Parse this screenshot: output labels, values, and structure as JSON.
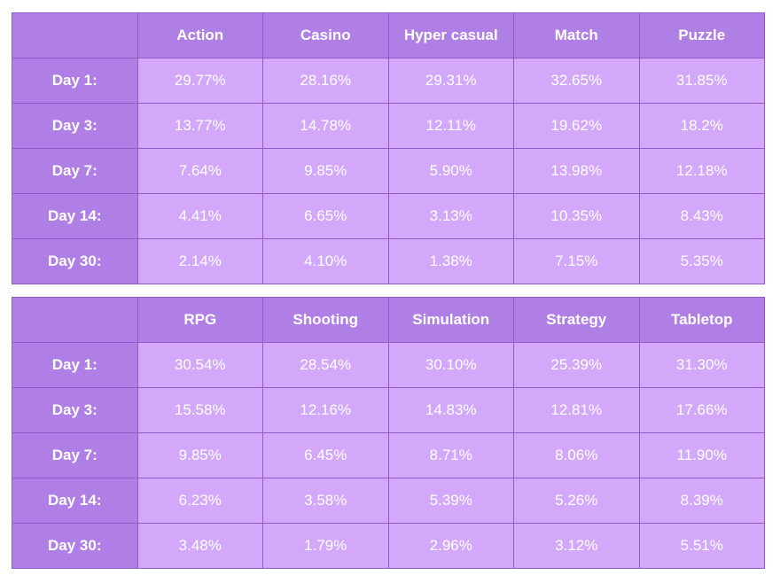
{
  "chart_data": [
    {
      "type": "table",
      "columns": [
        "Action",
        "Casino",
        "Hyper casual",
        "Match",
        "Puzzle"
      ],
      "rows": [
        {
          "label": "Day 1:",
          "values": [
            "29.77%",
            "28.16%",
            "29.31%",
            "32.65%",
            "31.85%"
          ]
        },
        {
          "label": "Day 3:",
          "values": [
            "13.77%",
            "14.78%",
            "12.11%",
            "19.62%",
            "18.2%"
          ]
        },
        {
          "label": "Day 7:",
          "values": [
            "7.64%",
            "9.85%",
            "5.90%",
            "13.98%",
            "12.18%"
          ]
        },
        {
          "label": "Day 14:",
          "values": [
            "4.41%",
            "6.65%",
            "3.13%",
            "10.35%",
            "8.43%"
          ]
        },
        {
          "label": "Day 30:",
          "values": [
            "2.14%",
            "4.10%",
            "1.38%",
            "7.15%",
            "5.35%"
          ]
        }
      ]
    },
    {
      "type": "table",
      "columns": [
        "RPG",
        "Shooting",
        "Simulation",
        "Strategy",
        "Tabletop"
      ],
      "rows": [
        {
          "label": "Day 1:",
          "values": [
            "30.54%",
            "28.54%",
            "30.10%",
            "25.39%",
            "31.30%"
          ]
        },
        {
          "label": "Day 3:",
          "values": [
            "15.58%",
            "12.16%",
            "14.83%",
            "12.81%",
            "17.66%"
          ]
        },
        {
          "label": "Day 7:",
          "values": [
            "9.85%",
            "6.45%",
            "8.71%",
            "8.06%",
            "11.90%"
          ]
        },
        {
          "label": "Day 14:",
          "values": [
            "6.23%",
            "3.58%",
            "5.39%",
            "5.26%",
            "8.39%"
          ]
        },
        {
          "label": "Day 30:",
          "values": [
            "3.48%",
            "1.79%",
            "2.96%",
            "3.12%",
            "5.51%"
          ]
        }
      ]
    }
  ],
  "colors": {
    "header_bg": "#b07fe6",
    "cell_bg": "#d3a8fb",
    "border": "#8e5bc7",
    "text": "#ffffff"
  }
}
